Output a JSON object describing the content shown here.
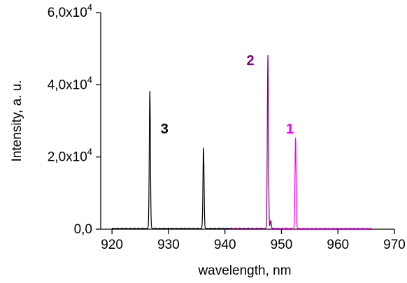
{
  "chart_data": {
    "type": "line",
    "xlabel": "wavelength, nm",
    "ylabel": "Intensity, a. u.",
    "xlim": [
      918,
      970
    ],
    "ylim": [
      0,
      60000
    ],
    "x_ticks": [
      {
        "value": 920,
        "label": "920"
      },
      {
        "value": 930,
        "label": "930"
      },
      {
        "value": 940,
        "label": "940"
      },
      {
        "value": 950,
        "label": "950"
      },
      {
        "value": 960,
        "label": "960"
      },
      {
        "value": 970,
        "label": "970"
      }
    ],
    "y_ticks": [
      {
        "value": 0,
        "mantissa": "0,0",
        "exp": ""
      },
      {
        "value": 20000,
        "mantissa": "2,0x10",
        "exp": "4"
      },
      {
        "value": 40000,
        "mantissa": "4,0x10",
        "exp": "4"
      },
      {
        "value": 60000,
        "mantissa": "6,0x10",
        "exp": "4"
      }
    ],
    "grid": false,
    "series": [
      {
        "label": "3",
        "color": "#000000",
        "label_at": {
          "x": 929.3,
          "y": 26500
        },
        "range": [
          920,
          947
        ],
        "peaks": [
          {
            "x": 926.7,
            "y": 38000
          },
          {
            "x": 936.2,
            "y": 22300
          }
        ]
      },
      {
        "label": "2",
        "color": "#800080",
        "label_at": {
          "x": 944.5,
          "y": 45500
        },
        "range": [
          941,
          951
        ],
        "peaks": [
          {
            "x": 947.6,
            "y": 48000
          },
          {
            "x": 948.1,
            "y": 2200
          }
        ]
      },
      {
        "label": "1",
        "color": "#ee00ee",
        "label_at": {
          "x": 951.5,
          "y": 26500
        },
        "range": [
          948.5,
          966
        ],
        "peaks": [
          {
            "x": 952.5,
            "y": 25000
          }
        ]
      }
    ]
  }
}
